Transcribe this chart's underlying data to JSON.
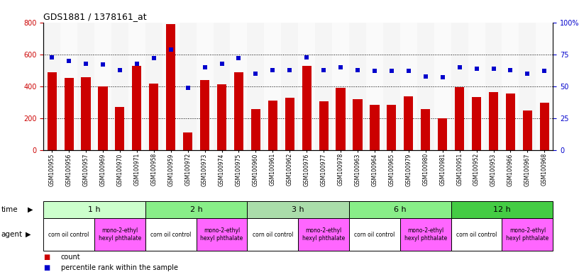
{
  "title": "GDS1881 / 1378161_at",
  "samples": [
    "GSM100955",
    "GSM100956",
    "GSM100957",
    "GSM100969",
    "GSM100970",
    "GSM100971",
    "GSM100958",
    "GSM100959",
    "GSM100972",
    "GSM100973",
    "GSM100974",
    "GSM100975",
    "GSM100960",
    "GSM100961",
    "GSM100962",
    "GSM100976",
    "GSM100977",
    "GSM100978",
    "GSM100963",
    "GSM100964",
    "GSM100965",
    "GSM100979",
    "GSM100980",
    "GSM100981",
    "GSM100951",
    "GSM100952",
    "GSM100953",
    "GSM100966",
    "GSM100967",
    "GSM100968"
  ],
  "counts": [
    490,
    455,
    460,
    400,
    270,
    530,
    420,
    790,
    110,
    440,
    415,
    490,
    260,
    310,
    330,
    530,
    305,
    390,
    320,
    285,
    285,
    340,
    260,
    200,
    395,
    335,
    365,
    355,
    250,
    300
  ],
  "percentiles": [
    73,
    70,
    68,
    67,
    63,
    68,
    72,
    79,
    49,
    65,
    68,
    72,
    60,
    63,
    63,
    73,
    63,
    65,
    63,
    62,
    62,
    62,
    58,
    57,
    65,
    64,
    64,
    63,
    60,
    62
  ],
  "bar_color": "#cc0000",
  "dot_color": "#0000cc",
  "ylim_left": [
    0,
    800
  ],
  "ylim_right": [
    0,
    100
  ],
  "yticks_left": [
    0,
    200,
    400,
    600,
    800
  ],
  "yticks_right": [
    0,
    25,
    50,
    75,
    100
  ],
  "time_groups": [
    {
      "label": "1 h",
      "start": 0,
      "end": 6,
      "color": "#ccffcc"
    },
    {
      "label": "2 h",
      "start": 6,
      "end": 12,
      "color": "#88ee88"
    },
    {
      "label": "3 h",
      "start": 12,
      "end": 18,
      "color": "#aaddaa"
    },
    {
      "label": "6 h",
      "start": 18,
      "end": 24,
      "color": "#88ee88"
    },
    {
      "label": "12 h",
      "start": 24,
      "end": 30,
      "color": "#44cc44"
    }
  ],
  "agent_groups": [
    {
      "label": "corn oil control",
      "start": 0,
      "end": 3,
      "color": "#ffffff"
    },
    {
      "label": "mono-2-ethyl\nhexyl phthalate",
      "start": 3,
      "end": 6,
      "color": "#ff66ff"
    },
    {
      "label": "corn oil control",
      "start": 6,
      "end": 9,
      "color": "#ffffff"
    },
    {
      "label": "mono-2-ethyl\nhexyl phthalate",
      "start": 9,
      "end": 12,
      "color": "#ff66ff"
    },
    {
      "label": "corn oil control",
      "start": 12,
      "end": 15,
      "color": "#ffffff"
    },
    {
      "label": "mono-2-ethyl\nhexyl phthalate",
      "start": 15,
      "end": 18,
      "color": "#ff66ff"
    },
    {
      "label": "corn oil control",
      "start": 18,
      "end": 21,
      "color": "#ffffff"
    },
    {
      "label": "mono-2-ethyl\nhexyl phthalate",
      "start": 21,
      "end": 24,
      "color": "#ff66ff"
    },
    {
      "label": "corn oil control",
      "start": 24,
      "end": 27,
      "color": "#ffffff"
    },
    {
      "label": "mono-2-ethyl\nhexyl phthalate",
      "start": 27,
      "end": 30,
      "color": "#ff66ff"
    }
  ],
  "legend_count_color": "#cc0000",
  "legend_pct_color": "#0000cc"
}
